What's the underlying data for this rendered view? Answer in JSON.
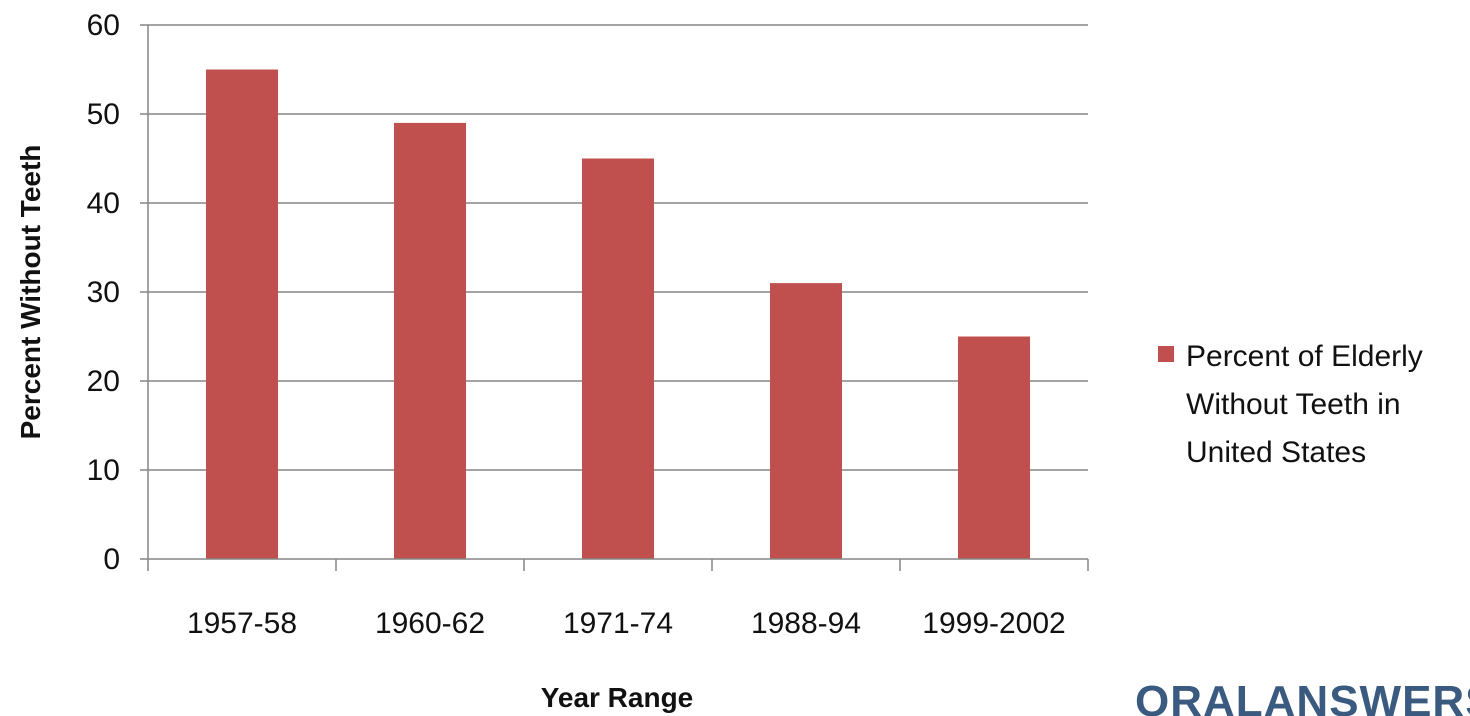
{
  "chart_data": {
    "type": "bar",
    "categories": [
      "1957-58",
      "1960-62",
      "1971-74",
      "1988-94",
      "1999-2002"
    ],
    "series": [
      {
        "name": "Percent of Elderly Without Teeth in United States",
        "values": [
          55,
          49,
          45,
          31,
          25
        ]
      }
    ],
    "xlabel": "Year Range",
    "ylabel": "Percent Without Teeth",
    "ylim": [
      0,
      60
    ],
    "yticks": [
      0,
      10,
      20,
      30,
      40,
      50,
      60
    ],
    "grid": true,
    "legend_position": "right",
    "legend_lines": [
      "Percent of Elderly",
      "Without Teeth in",
      "United States"
    ]
  },
  "colors": {
    "bar": "#c0504d",
    "grid": "#868686",
    "axis": "#868686",
    "brand": "#3a5a80"
  },
  "watermark": "ORALANSWERS"
}
